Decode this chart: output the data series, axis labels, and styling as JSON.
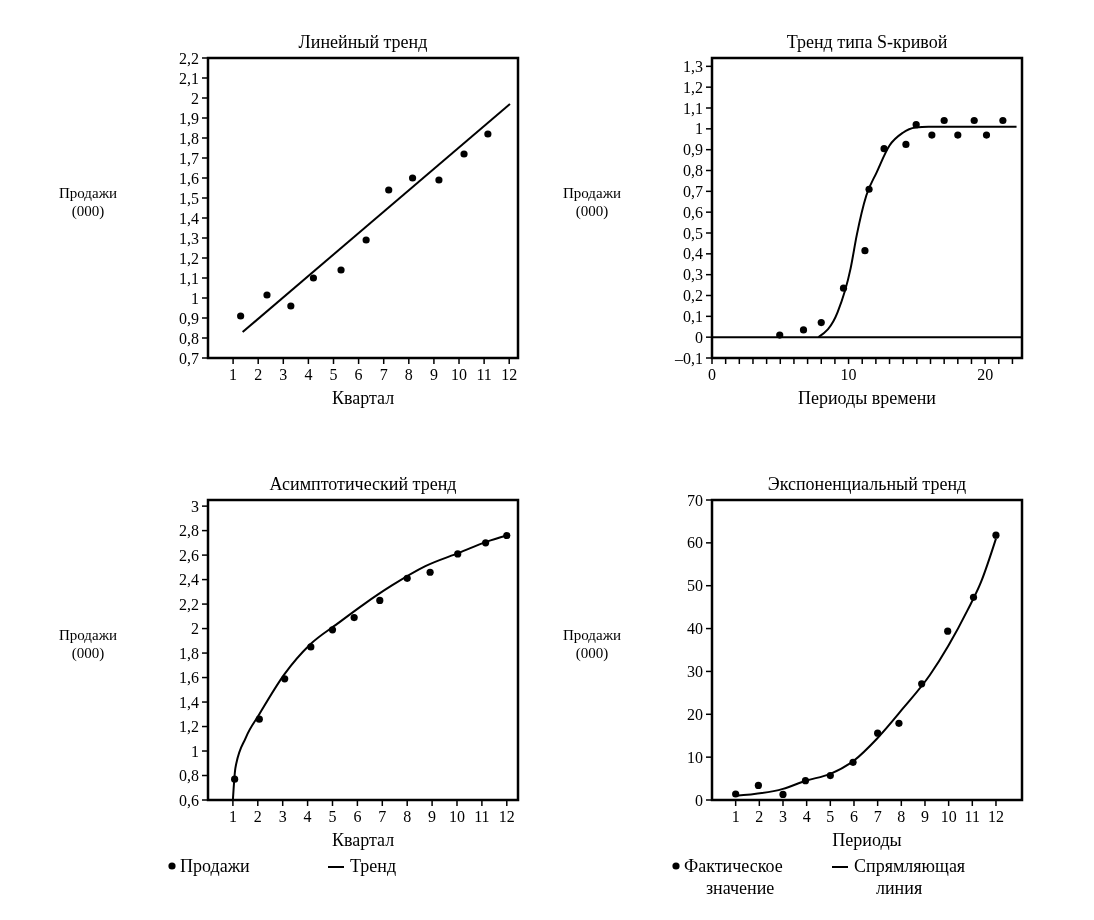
{
  "chart_data": [
    {
      "type": "scatter",
      "title": "Линейный тренд",
      "xlabel": "Квартал",
      "ylabel": "Продажи (000)",
      "xlim": [
        0,
        12.35
      ],
      "xticks": [
        1,
        2,
        3,
        4,
        5,
        6,
        7,
        8,
        9,
        10,
        11,
        12
      ],
      "ylim": [
        0.7,
        2.2
      ],
      "yticks": [
        {
          "value": 0.7,
          "label": "0,7"
        },
        {
          "value": 0.8,
          "label": "0,8"
        },
        {
          "value": 0.9,
          "label": "0,9"
        },
        1,
        {
          "value": 1.1,
          "label": "1,1"
        },
        {
          "value": 1.2,
          "label": "1,2"
        },
        {
          "value": 1.3,
          "label": "1,3"
        },
        {
          "value": 1.4,
          "label": "1,4"
        },
        {
          "value": 1.5,
          "label": "1,5"
        },
        {
          "value": 1.6,
          "label": "1,6"
        },
        {
          "value": 1.7,
          "label": "1,7"
        },
        {
          "value": 1.8,
          "label": "1,8"
        },
        {
          "value": 1.9,
          "label": "1,9"
        },
        2,
        {
          "value": 2.1,
          "label": "2,1"
        },
        {
          "value": 2.2,
          "label": "2,2"
        }
      ],
      "series": [
        {
          "type": "scatter",
          "marker": "circle",
          "color": "#000000",
          "x": [
            1.3,
            2.35,
            3.3,
            4.2,
            5.3,
            6.3,
            7.2,
            8.15,
            9.2,
            10.2,
            11.15
          ],
          "values": [
            0.91,
            1.015,
            0.96,
            1.1,
            1.14,
            1.29,
            1.54,
            1.6,
            1.59,
            1.72,
            1.82
          ]
        },
        {
          "type": "line",
          "color": "#000000",
          "x": [
            1.38,
            12.03
          ],
          "values": [
            0.83,
            1.97
          ]
        }
      ]
    },
    {
      "type": "scatter",
      "title": "Тренд типа S-кривой",
      "xlabel": "Периоды времени",
      "ylabel": "Продажи (000)",
      "xlim": [
        0,
        22.7
      ],
      "xticks": [
        0,
        {
          "value": 1,
          "label": null
        },
        {
          "value": 2,
          "label": null
        },
        {
          "value": 3,
          "label": null
        },
        {
          "value": 4,
          "label": null
        },
        {
          "value": 5,
          "label": null
        },
        {
          "value": 6,
          "label": null
        },
        {
          "value": 7,
          "label": null
        },
        {
          "value": 8,
          "label": null
        },
        {
          "value": 9,
          "label": null
        },
        10,
        {
          "value": 11,
          "label": null
        },
        {
          "value": 12,
          "label": null
        },
        {
          "value": 13,
          "label": null
        },
        {
          "value": 14,
          "label": null
        },
        {
          "value": 15,
          "label": null
        },
        {
          "value": 16,
          "label": null
        },
        {
          "value": 17,
          "label": null
        },
        {
          "value": 18,
          "label": null
        },
        {
          "value": 19,
          "label": null
        },
        20,
        {
          "value": 21,
          "label": null
        },
        {
          "value": 22,
          "label": null
        }
      ],
      "ylim": [
        -0.1,
        1.34
      ],
      "yticks": [
        {
          "value": -0.1,
          "label": "–0,1"
        },
        0,
        {
          "value": 0.1,
          "label": "0,1"
        },
        {
          "value": 0.2,
          "label": "0,2"
        },
        {
          "value": 0.3,
          "label": "0,3"
        },
        {
          "value": 0.4,
          "label": "0,4"
        },
        {
          "value": 0.5,
          "label": "0,5"
        },
        {
          "value": 0.6,
          "label": "0,6"
        },
        {
          "value": 0.7,
          "label": "0,7"
        },
        {
          "value": 0.8,
          "label": "0,8"
        },
        {
          "value": 0.9,
          "label": "0,9"
        },
        1,
        {
          "value": 1.1,
          "label": "1,1"
        },
        {
          "value": 1.2,
          "label": "1,2"
        },
        {
          "value": 1.3,
          "label": "1,3"
        }
      ],
      "ref_lines": [
        {
          "axis": "y",
          "value": 0,
          "color": "#000000"
        }
      ],
      "series": [
        {
          "type": "scatter",
          "marker": "circle",
          "color": "#000000",
          "x": [
            4.96,
            6.7,
            8.0,
            9.63,
            11.2,
            11.5,
            12.6,
            14.2,
            14.95,
            16.1,
            17.0,
            18.0,
            19.2,
            20.1,
            21.3
          ],
          "values": [
            0.01,
            0.035,
            0.07,
            0.235,
            0.415,
            0.71,
            0.905,
            0.925,
            1.02,
            0.97,
            1.04,
            0.97,
            1.04,
            0.97,
            1.04
          ]
        },
        {
          "type": "line",
          "color": "#000000",
          "x": [
            7.8,
            9.2,
            10.15,
            10.6,
            11.3,
            12.05,
            13.0,
            13.95,
            14.9,
            15.85,
            22.3
          ],
          "values": [
            0,
            0.12,
            0.33,
            0.49,
            0.68,
            0.79,
            0.92,
            0.98,
            1.006,
            1.01,
            1.01
          ]
        }
      ]
    },
    {
      "type": "scatter",
      "title": "Асимптотический тренд",
      "xlabel": "Квартал",
      "ylabel": "Продажи (000)",
      "legend": "bottom",
      "xlim": [
        0,
        12.45
      ],
      "xticks": [
        1,
        2,
        3,
        4,
        5,
        6,
        7,
        8,
        9,
        10,
        11,
        12
      ],
      "ylim": [
        0.6,
        3.05
      ],
      "yticks": [
        {
          "value": 0.6,
          "label": "0,6"
        },
        {
          "value": 0.8,
          "label": "0,8"
        },
        1,
        {
          "value": 1.2,
          "label": "1,2"
        },
        {
          "value": 1.4,
          "label": "1,4"
        },
        {
          "value": 1.6,
          "label": "1,6"
        },
        {
          "value": 1.8,
          "label": "1,8"
        },
        2,
        {
          "value": 2.2,
          "label": "2,2"
        },
        {
          "value": 2.4,
          "label": "2,4"
        },
        {
          "value": 2.6,
          "label": "2,6"
        },
        {
          "value": 2.8,
          "label": "2,8"
        },
        3
      ],
      "series": [
        {
          "type": "scatter",
          "marker": "circle",
          "name": "Продажи",
          "color": "#000000",
          "x": [
            1.07,
            2.06,
            3.08,
            4.13,
            5.0,
            5.87,
            6.9,
            8.0,
            8.92,
            10.03,
            11.15,
            12.0
          ],
          "values": [
            0.77,
            1.26,
            1.59,
            1.85,
            1.99,
            2.09,
            2.23,
            2.41,
            2.46,
            2.61,
            2.7,
            2.76
          ]
        },
        {
          "type": "line",
          "name": "Тренд",
          "color": "#000000",
          "x": [
            1.0,
            1.1,
            1.52,
            2.06,
            3.08,
            4.1,
            5.2,
            6.27,
            7.37,
            8.73,
            10.1,
            11.2,
            12.0
          ],
          "values": [
            0.6,
            0.86,
            1.11,
            1.3,
            1.63,
            1.87,
            2.04,
            2.2,
            2.35,
            2.51,
            2.62,
            2.71,
            2.76
          ]
        }
      ]
    },
    {
      "type": "scatter",
      "title": "Экспоненциальный тренд",
      "xlabel": "Периоды",
      "ylabel": "Продажи (000)",
      "legend": "bottom",
      "xlim": [
        0,
        13.1
      ],
      "xticks": [
        1,
        2,
        3,
        4,
        5,
        6,
        7,
        8,
        9,
        10,
        11,
        12
      ],
      "ylim": [
        0,
        70
      ],
      "yticks": [
        0,
        10,
        20,
        30,
        40,
        50,
        60,
        70
      ],
      "series": [
        {
          "type": "scatter",
          "marker": "circle",
          "name": "Фактическое значение",
          "color": "#000000",
          "x": [
            1,
            1.96,
            3.0,
            3.95,
            5.0,
            5.96,
            7.0,
            7.9,
            8.86,
            9.96,
            11.05,
            12
          ],
          "values": [
            1.4,
            3.4,
            1.3,
            4.5,
            5.7,
            8.8,
            15.6,
            17.9,
            27.1,
            39.4,
            47.3,
            61.8
          ]
        },
        {
          "type": "line",
          "name": "Спрямляющая линия",
          "color": "#000000",
          "x": [
            1,
            3,
            3.96,
            5,
            6,
            6.97,
            8.06,
            9.2,
            10,
            10.8,
            11.37,
            12
          ],
          "values": [
            1.0,
            2.6,
            4.5,
            6.1,
            9.2,
            14.3,
            21.3,
            29.1,
            36.1,
            44.3,
            50.9,
            61
          ]
        }
      ]
    }
  ]
}
